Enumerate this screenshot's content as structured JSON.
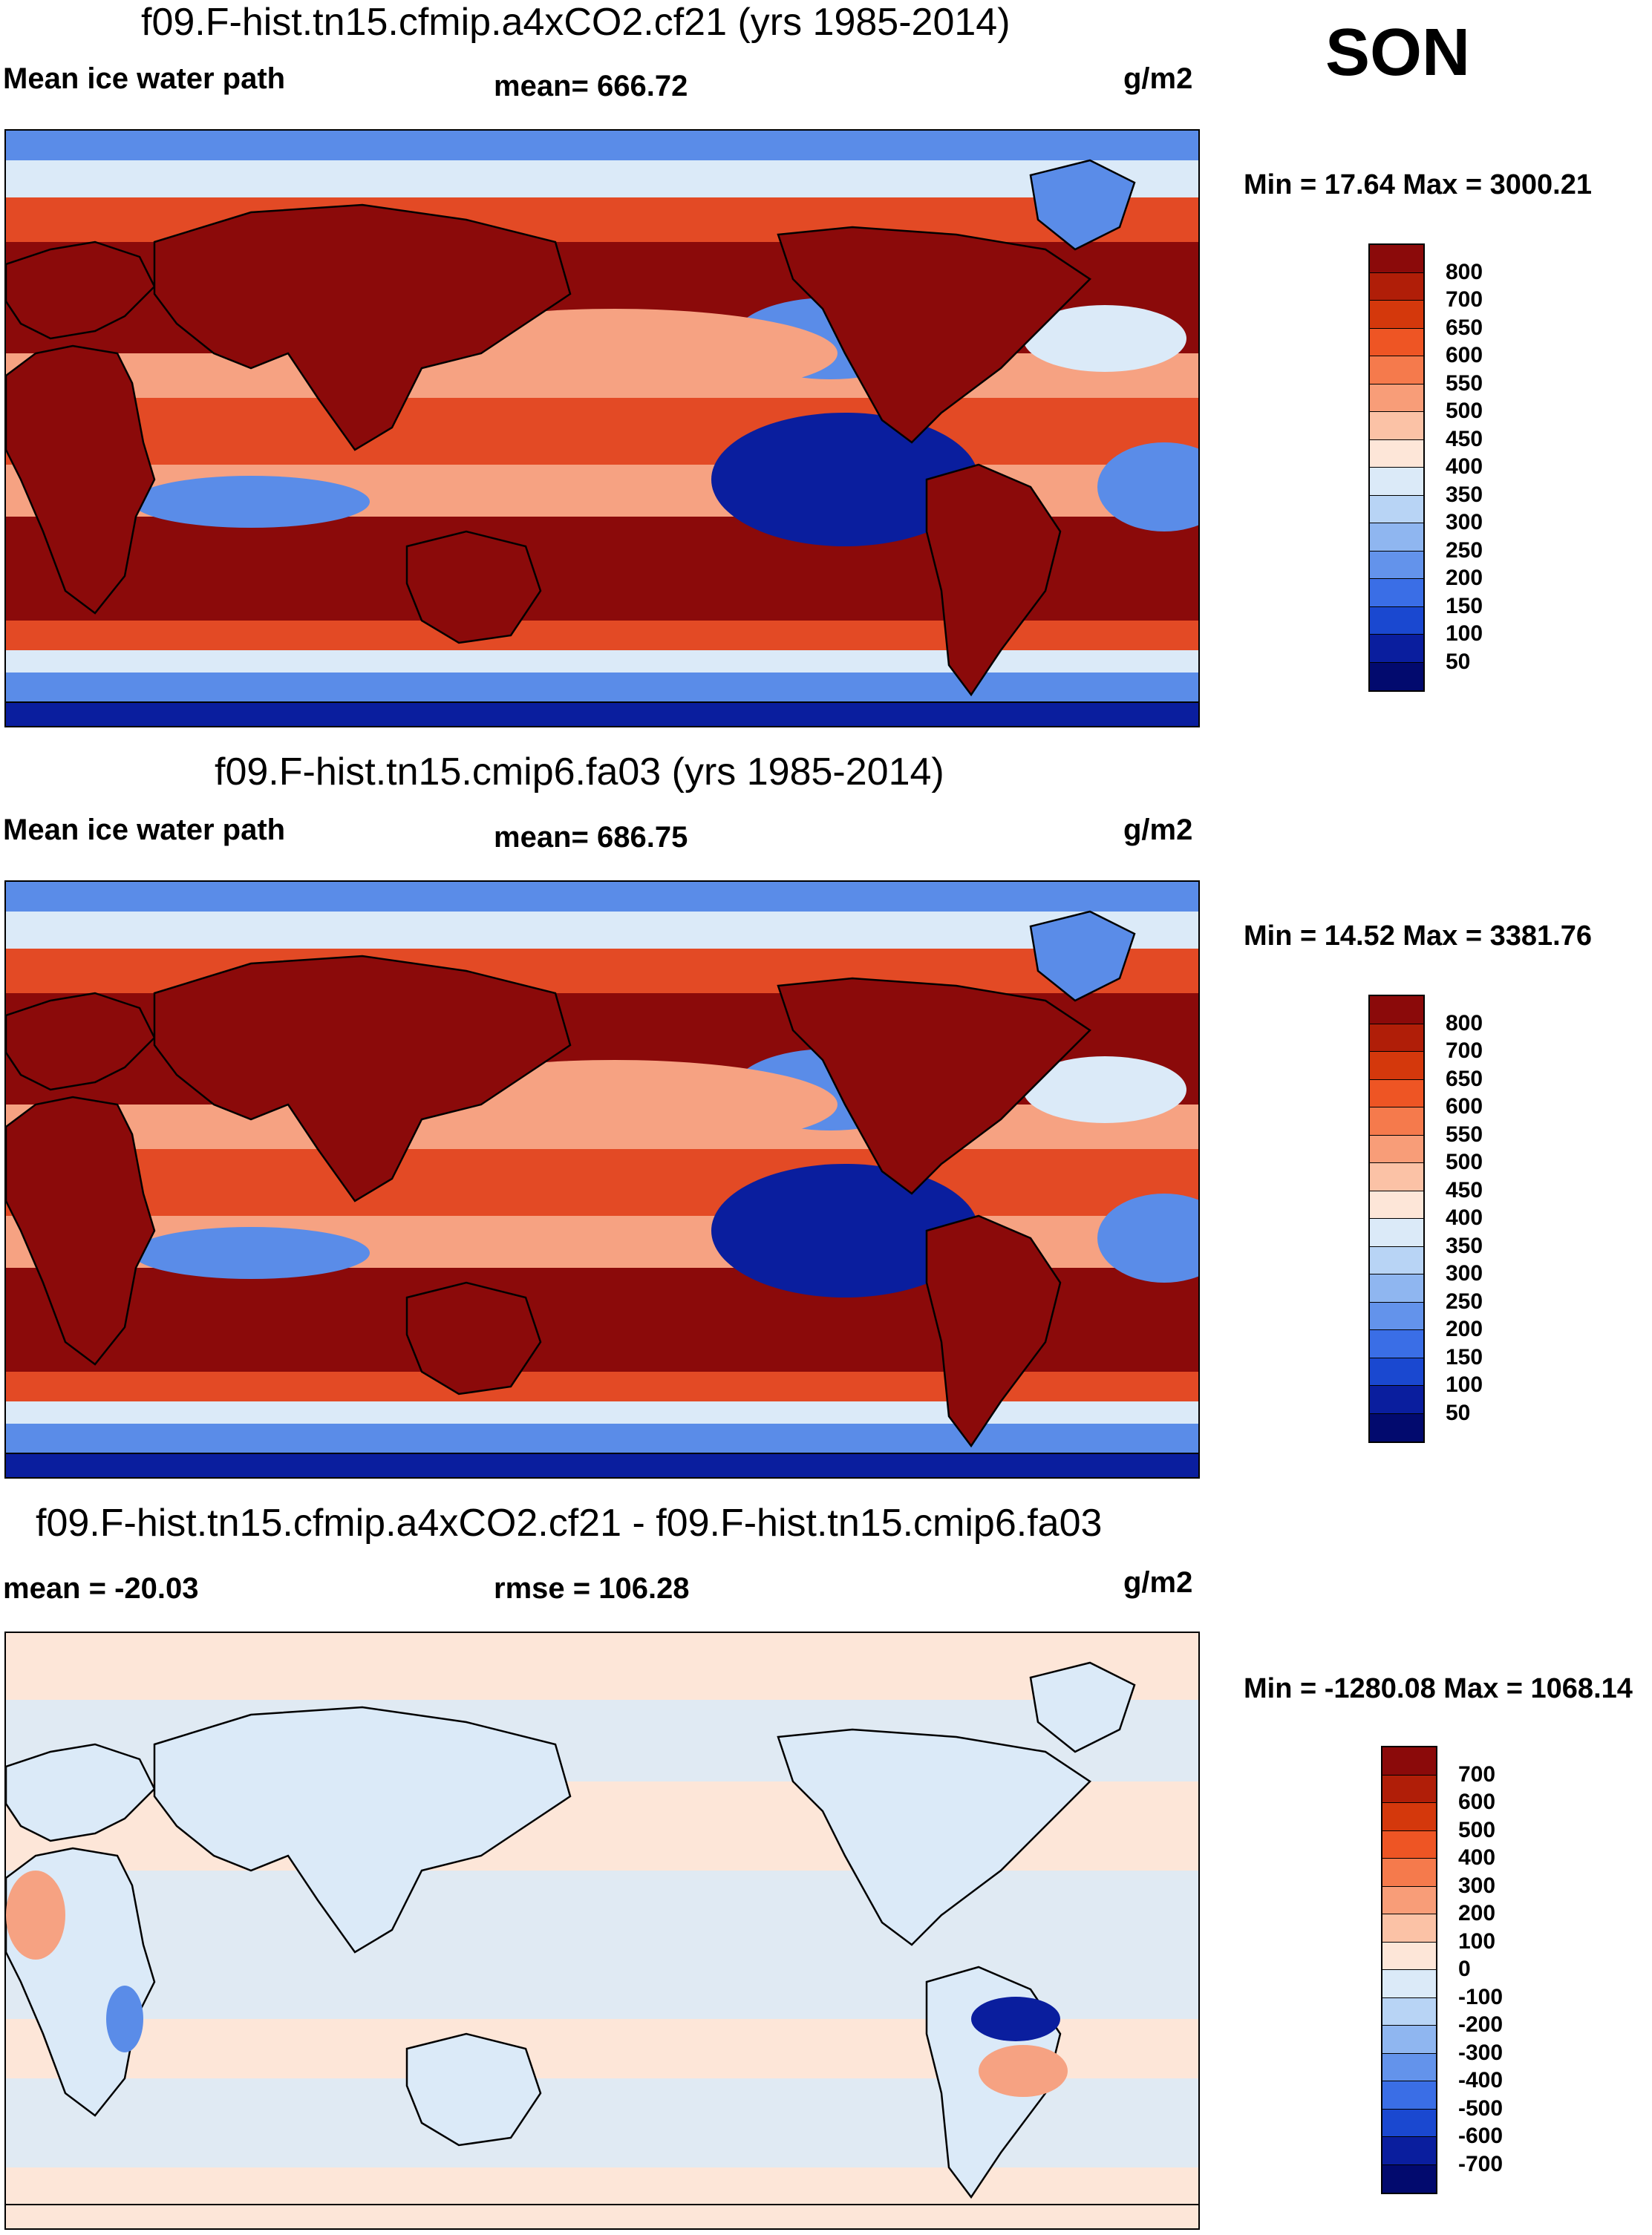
{
  "season": "SON",
  "panels": [
    {
      "title": "f09.F-hist.tn15.cfmip.a4xCO2.cf21 (yrs 1985-2014)",
      "left_label": "Mean ice water path",
      "center_label": "mean= 666.72",
      "units": "g/m2",
      "minmax": "Min =  17.64 Max = 3000.21",
      "variable": "ice water path",
      "map_style": "absolute"
    },
    {
      "title": "f09.F-hist.tn15.cmip6.fa03 (yrs 1985-2014)",
      "left_label": "Mean ice water path",
      "center_label": "mean= 686.75",
      "units": "g/m2",
      "minmax": "Min =  14.52 Max = 3381.76",
      "variable": "ice water path",
      "map_style": "absolute"
    },
    {
      "title": "f09.F-hist.tn15.cfmip.a4xCO2.cf21 - f09.F-hist.tn15.cmip6.fa03",
      "left_label": "mean = -20.03",
      "center_label": "rmse = 106.28",
      "units": "g/m2",
      "minmax": "Min = -1280.08 Max = 1068.14",
      "variable": "difference",
      "map_style": "difference"
    }
  ],
  "colorbars": {
    "absolute": {
      "labels": [
        "800",
        "700",
        "650",
        "600",
        "550",
        "500",
        "450",
        "400",
        "350",
        "300",
        "250",
        "200",
        "150",
        "100",
        "50"
      ],
      "colors": [
        "#8b0a0a",
        "#b01e08",
        "#d4380c",
        "#ee5524",
        "#f57a4c",
        "#f89d78",
        "#fbc2a6",
        "#fde6d8",
        "#dbeaf8",
        "#b8d4f5",
        "#8fb6f0",
        "#6393eb",
        "#3a6ee6",
        "#1a48d0",
        "#0a1e9e",
        "#020a6e"
      ]
    },
    "difference": {
      "labels": [
        "700",
        "600",
        "500",
        "400",
        "300",
        "200",
        "100",
        "0",
        "-100",
        "-200",
        "-300",
        "-400",
        "-500",
        "-600",
        "-700"
      ],
      "colors": [
        "#8b0a0a",
        "#b01e08",
        "#d4380c",
        "#ee5524",
        "#f57a4c",
        "#f89d78",
        "#fbc2a6",
        "#fde6d8",
        "#dbeaf8",
        "#b8d4f5",
        "#8fb6f0",
        "#6393eb",
        "#3a6ee6",
        "#1a48d0",
        "#0a1e9e",
        "#020a6e"
      ]
    }
  },
  "palette": {
    "dark_red": "#8b0a0a",
    "mid_red": "#e34a25",
    "light_red": "#f6a282",
    "cream": "#fde6d8",
    "light_blue": "#dbeaf8",
    "mid_blue": "#5a8ce8",
    "dark_blue": "#0a1e9e",
    "navy": "#020a6e"
  }
}
